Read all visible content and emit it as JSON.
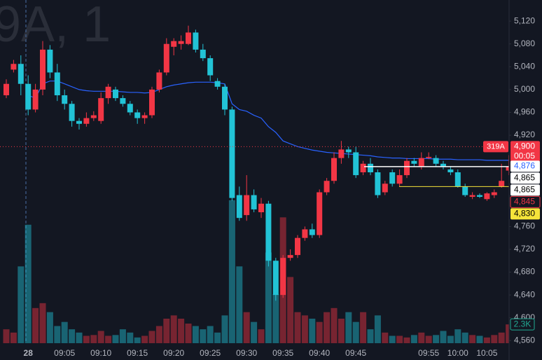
{
  "chart_data": {
    "type": "candlestick",
    "watermark": "9A, 1",
    "categories": [
      null,
      null,
      null,
      "28",
      null,
      null,
      null,
      null,
      "09:05",
      null,
      null,
      null,
      null,
      "09:10",
      null,
      null,
      null,
      null,
      "09:15",
      null,
      null,
      null,
      null,
      "09:20",
      null,
      null,
      null,
      null,
      "09:25",
      null,
      null,
      null,
      null,
      "09:30",
      null,
      null,
      null,
      null,
      "09:35",
      null,
      null,
      null,
      null,
      "09:40",
      null,
      null,
      null,
      null,
      "09:45",
      null,
      null,
      null,
      null,
      null,
      null,
      null,
      null,
      null,
      "09:55",
      null,
      null,
      null,
      "10:00",
      null,
      null,
      null,
      "10:05",
      null,
      null,
      null
    ],
    "open": [
      4990,
      5035,
      5045,
      5010,
      4965,
      5000,
      5070,
      5030,
      4990,
      4975,
      4945,
      4940,
      4950,
      4945,
      4985,
      5000,
      4985,
      4975,
      4960,
      4950,
      4955,
      5000,
      5030,
      5075,
      5080,
      5080,
      5100,
      5070,
      5055,
      5015,
      5005,
      4965,
      4815,
      4780,
      4815,
      4785,
      4800,
      4700,
      4640,
      4705,
      4710,
      4740,
      4755,
      4745,
      4820,
      4840,
      4880,
      4895,
      4890,
      4855,
      4870,
      4855,
      4820,
      4855,
      4835,
      4850,
      4875,
      4865,
      4880,
      4880,
      4870,
      4860,
      4855,
      4830,
      4812,
      4815,
      4808,
      4815,
      4830,
      4858
    ],
    "high": [
      5018,
      5052,
      5060,
      5025,
      5010,
      5085,
      5078,
      5045,
      5000,
      4980,
      4950,
      4960,
      4962,
      4995,
      5010,
      5005,
      4990,
      4980,
      4965,
      4960,
      5005,
      5035,
      5090,
      5090,
      5095,
      5112,
      5105,
      5080,
      5060,
      5020,
      5010,
      4970,
      4830,
      4850,
      4825,
      4810,
      4805,
      4705,
      4710,
      4720,
      4745,
      4760,
      4765,
      4825,
      4845,
      4890,
      4910,
      4900,
      4900,
      4875,
      4880,
      4860,
      4840,
      4860,
      4860,
      4880,
      4880,
      4890,
      4890,
      4885,
      4875,
      4865,
      4860,
      4835,
      4820,
      4818,
      4820,
      4825,
      4870,
      4885
    ],
    "low": [
      4985,
      5030,
      4990,
      4955,
      4960,
      4990,
      5020,
      4980,
      4965,
      4935,
      4930,
      4935,
      4945,
      4940,
      4975,
      4980,
      4970,
      4955,
      4940,
      4940,
      4950,
      4995,
      5025,
      5060,
      5070,
      5078,
      5065,
      5050,
      5015,
      5000,
      4955,
      4805,
      4770,
      4770,
      4785,
      4775,
      4690,
      4630,
      4635,
      4700,
      4705,
      4735,
      4740,
      4740,
      4815,
      4835,
      4870,
      4880,
      4845,
      4850,
      4850,
      4810,
      4815,
      4830,
      4830,
      4845,
      4865,
      4860,
      4878,
      4865,
      4860,
      4850,
      4828,
      4812,
      4808,
      4810,
      4805,
      4810,
      4828,
      4850
    ],
    "close": [
      5010,
      5045,
      5010,
      4965,
      5000,
      5070,
      5030,
      4990,
      4975,
      4945,
      4940,
      4950,
      4955,
      4985,
      5005,
      4985,
      4975,
      4960,
      4950,
      4955,
      5000,
      5030,
      5080,
      5085,
      5085,
      5100,
      5070,
      5055,
      5025,
      5005,
      4965,
      4810,
      4775,
      4815,
      4790,
      4800,
      4700,
      4640,
      4705,
      4710,
      4740,
      4755,
      4745,
      4820,
      4840,
      4880,
      4895,
      4890,
      4850,
      4870,
      4855,
      4815,
      4835,
      4835,
      4850,
      4875,
      4870,
      4880,
      4882,
      4870,
      4865,
      4855,
      4830,
      4815,
      4815,
      4812,
      4818,
      4820,
      4840,
      4865
    ],
    "volume": [
      1700,
      1300,
      9400,
      14500,
      4300,
      4900,
      3800,
      2100,
      2600,
      1700,
      1300,
      900,
      1000,
      1500,
      900,
      1000,
      1700,
      1300,
      700,
      900,
      1500,
      2100,
      3000,
      3400,
      3000,
      2400,
      2100,
      1700,
      2100,
      1300,
      3400,
      17500,
      9400,
      3800,
      2600,
      1700,
      11100,
      6000,
      15400,
      8100,
      3800,
      3400,
      3000,
      2600,
      3800,
      4300,
      3000,
      3800,
      2600,
      3800,
      1700,
      3400,
      1300,
      900,
      900,
      700,
      1000,
      1300,
      900,
      1000,
      1500,
      900,
      1700,
      1300,
      1000,
      900,
      700,
      1000,
      1300,
      2300
    ],
    "ma_values": [
      null,
      null,
      null,
      4990,
      4985,
      5010,
      5015,
      5015,
      5010,
      5005,
      5000,
      4998,
      4997,
      4997,
      4997,
      4997,
      4996,
      4995,
      4995,
      4994,
      4995,
      5000,
      5005,
      5008,
      5010,
      5012,
      5013,
      5013,
      5013,
      5012,
      5010,
      4975,
      4965,
      4962,
      4955,
      4950,
      4935,
      4925,
      4910,
      4905,
      4900,
      4897,
      4894,
      4892,
      4890,
      4889,
      4888,
      4887,
      4886,
      4885,
      4884,
      4882,
      4881,
      4880,
      4880,
      4879,
      4879,
      4879,
      4879,
      4878,
      4878,
      4878,
      4877,
      4877,
      4877,
      4877,
      4876,
      4876,
      4876,
      4876
    ],
    "ma_color": "#2962ff",
    "up_color": "#f23645",
    "down_color": "#22c3d6",
    "ylim": [
      4526,
      5157
    ],
    "volume_ylim": [
      0,
      42000
    ],
    "yticks": [
      {
        "value": 4560,
        "label": "4,560"
      },
      {
        "value": 4600,
        "label": "4,600"
      },
      {
        "value": 4640,
        "label": "4,640"
      },
      {
        "value": 4680,
        "label": "4,680"
      },
      {
        "value": 4720,
        "label": "4,720"
      },
      {
        "value": 4760,
        "label": "4,760"
      },
      {
        "value": 4920,
        "label": "4,920"
      },
      {
        "value": 4960,
        "label": "4,960"
      },
      {
        "value": 5000,
        "label": "5,000"
      },
      {
        "value": 5040,
        "label": "5,040"
      },
      {
        "value": 5080,
        "label": "5,080"
      },
      {
        "value": 5120,
        "label": "5,120"
      }
    ],
    "grid": false,
    "count_label": "319A",
    "countdown": "00:05",
    "price_tags": [
      {
        "value": 4900,
        "label": "4,900",
        "bg": "#f23645",
        "text_color": "#ffffff",
        "line": "dotted"
      },
      {
        "value": 4876,
        "label": "4,876",
        "bg": "#ffffff",
        "text_color": "#2962ff",
        "line": "none"
      },
      {
        "value": 4865,
        "label": "4,865",
        "bg": "#ffffff",
        "text_color": "#000000",
        "line": "solid"
      },
      {
        "value": 4865,
        "label": "4,865",
        "bg": "#ffffff",
        "text_color": "#000000",
        "line": "none"
      },
      {
        "value": 4845,
        "label": "4,845",
        "bg": "#131722",
        "text_color": "#f23645",
        "line": "none"
      },
      {
        "value": 4830,
        "label": "4,830",
        "bg": "#f5e43a",
        "text_color": "#000000",
        "line": "yellow"
      }
    ],
    "volume_tag": {
      "value": 2300,
      "label": "2.3K"
    }
  }
}
